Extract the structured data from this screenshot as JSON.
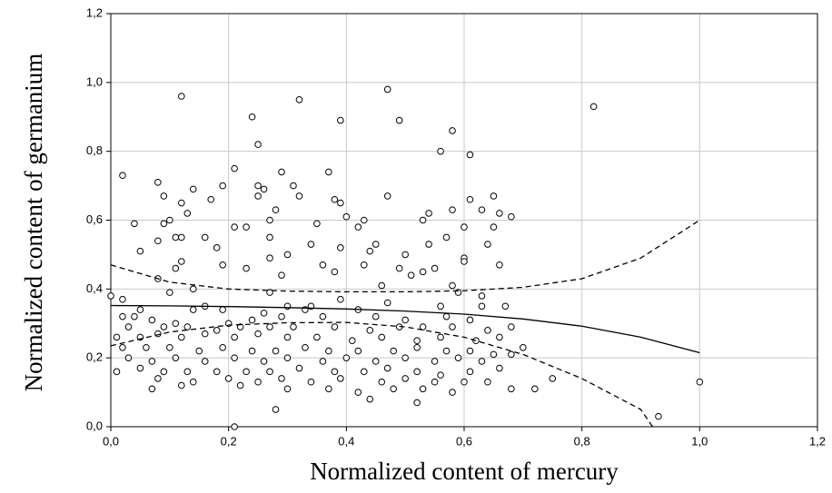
{
  "chart_data": {
    "type": "scatter",
    "x_label": "Normalized content of mercury",
    "y_label": "Normalized content of germanium",
    "xlim": [
      0,
      1.2
    ],
    "ylim": [
      0,
      1.2
    ],
    "xticks": [
      {
        "value": 0,
        "label": "0,0"
      },
      {
        "value": 0.2,
        "label": "0,2"
      },
      {
        "value": 0.4,
        "label": "0,4"
      },
      {
        "value": 0.6,
        "label": "0,6"
      },
      {
        "value": 0.8,
        "label": "0,8"
      },
      {
        "value": 1.0,
        "label": "1,0"
      },
      {
        "value": 1.2,
        "label": "1,2"
      }
    ],
    "yticks": [
      {
        "value": 0,
        "label": "0,0"
      },
      {
        "value": 0.2,
        "label": "0,2"
      },
      {
        "value": 0.4,
        "label": "0,4"
      },
      {
        "value": 0.6,
        "label": "0,6"
      },
      {
        "value": 0.8,
        "label": "0,8"
      },
      {
        "value": 1.0,
        "label": "1,0"
      },
      {
        "value": 1.2,
        "label": "1,2"
      }
    ],
    "grid": true,
    "series": [
      {
        "type": "scatter",
        "color": "#000000",
        "x": [
          0.12,
          0.32,
          0.47,
          0.82,
          0.24,
          0.49,
          0.39,
          0.58,
          0.25,
          0.56,
          0.61,
          0.37,
          0.21,
          0.29,
          0.02,
          0.08,
          0.19,
          0.31,
          0.25,
          0.26,
          0.14,
          0.32,
          0.38,
          0.25,
          0.47,
          0.65,
          0.09,
          0.17,
          0.39,
          0.12,
          0.61,
          0.63,
          0.13,
          0.28,
          0.58,
          0.66,
          0.4,
          0.54,
          0.43,
          0.53,
          0.04,
          0.1,
          0.09,
          0.21,
          0.23,
          0.27,
          0.35,
          0.42,
          0.6,
          0.68,
          0.65,
          0.11,
          0.12,
          0.16,
          0.27,
          0.08,
          0.64,
          0.39,
          0.54,
          0.45,
          0.57,
          0.34,
          0.05,
          0.18,
          0.3,
          0.44,
          0.5,
          0.6,
          0.27,
          0.19,
          0.49,
          0.53,
          0.43,
          0.6,
          0.66,
          0.11,
          0.23,
          0.36,
          0.51,
          0.12,
          0.38,
          0.55,
          0.08,
          0.29,
          0.46,
          0.14,
          0.58,
          0.0,
          0.02,
          0.1,
          0.27,
          0.39,
          0.59,
          0.63,
          0.3,
          0.33,
          0.47,
          0.16,
          0.34,
          0.56,
          0.05,
          0.14,
          0.19,
          0.26,
          0.42,
          0.63,
          0.67,
          0.02,
          0.04,
          0.07,
          0.11,
          0.2,
          0.24,
          0.29,
          0.36,
          0.45,
          0.5,
          0.57,
          0.61,
          0.03,
          0.09,
          0.13,
          0.18,
          0.22,
          0.27,
          0.31,
          0.38,
          0.44,
          0.49,
          0.53,
          0.58,
          0.64,
          0.68,
          0.01,
          0.05,
          0.08,
          0.12,
          0.16,
          0.21,
          0.25,
          0.3,
          0.35,
          0.41,
          0.46,
          0.52,
          0.56,
          0.62,
          0.66,
          0.02,
          0.06,
          0.1,
          0.15,
          0.19,
          0.24,
          0.28,
          0.33,
          0.37,
          0.42,
          0.48,
          0.52,
          0.57,
          0.61,
          0.65,
          0.7,
          0.03,
          0.07,
          0.11,
          0.16,
          0.21,
          0.26,
          0.3,
          0.36,
          0.4,
          0.45,
          0.5,
          0.55,
          0.59,
          0.63,
          0.68,
          0.01,
          0.05,
          0.09,
          0.13,
          0.18,
          0.23,
          0.27,
          0.32,
          0.38,
          0.43,
          0.47,
          0.52,
          0.56,
          0.61,
          0.66,
          0.75,
          0.08,
          0.14,
          0.2,
          0.25,
          0.29,
          0.34,
          0.39,
          0.46,
          0.5,
          0.55,
          0.6,
          0.64,
          0.68,
          0.72,
          1.0,
          0.07,
          0.12,
          0.22,
          0.3,
          0.37,
          0.42,
          0.48,
          0.53,
          0.58,
          0.44,
          0.52,
          0.28,
          0.93,
          0.21
        ],
        "y": [
          0.96,
          0.95,
          0.98,
          0.93,
          0.9,
          0.89,
          0.89,
          0.86,
          0.82,
          0.8,
          0.79,
          0.74,
          0.75,
          0.74,
          0.73,
          0.71,
          0.7,
          0.7,
          0.7,
          0.69,
          0.69,
          0.67,
          0.66,
          0.67,
          0.67,
          0.67,
          0.67,
          0.66,
          0.65,
          0.65,
          0.66,
          0.63,
          0.62,
          0.63,
          0.63,
          0.62,
          0.61,
          0.62,
          0.6,
          0.6,
          0.59,
          0.6,
          0.59,
          0.58,
          0.58,
          0.6,
          0.59,
          0.58,
          0.58,
          0.61,
          0.58,
          0.55,
          0.55,
          0.55,
          0.55,
          0.54,
          0.53,
          0.52,
          0.53,
          0.53,
          0.55,
          0.53,
          0.51,
          0.52,
          0.5,
          0.51,
          0.5,
          0.49,
          0.49,
          0.47,
          0.46,
          0.45,
          0.47,
          0.48,
          0.47,
          0.46,
          0.46,
          0.47,
          0.44,
          0.48,
          0.45,
          0.46,
          0.43,
          0.44,
          0.41,
          0.4,
          0.41,
          0.38,
          0.37,
          0.39,
          0.39,
          0.37,
          0.39,
          0.38,
          0.35,
          0.34,
          0.36,
          0.35,
          0.35,
          0.35,
          0.34,
          0.34,
          0.34,
          0.33,
          0.34,
          0.35,
          0.35,
          0.32,
          0.32,
          0.31,
          0.3,
          0.3,
          0.31,
          0.32,
          0.32,
          0.32,
          0.31,
          0.32,
          0.31,
          0.29,
          0.29,
          0.29,
          0.28,
          0.29,
          0.29,
          0.29,
          0.29,
          0.28,
          0.29,
          0.29,
          0.29,
          0.28,
          0.29,
          0.26,
          0.26,
          0.27,
          0.26,
          0.27,
          0.26,
          0.27,
          0.26,
          0.26,
          0.25,
          0.26,
          0.25,
          0.26,
          0.25,
          0.26,
          0.23,
          0.23,
          0.23,
          0.22,
          0.23,
          0.22,
          0.22,
          0.23,
          0.22,
          0.22,
          0.22,
          0.23,
          0.22,
          0.22,
          0.21,
          0.23,
          0.2,
          0.19,
          0.2,
          0.19,
          0.2,
          0.19,
          0.2,
          0.19,
          0.2,
          0.19,
          0.2,
          0.19,
          0.2,
          0.19,
          0.21,
          0.16,
          0.17,
          0.16,
          0.16,
          0.16,
          0.16,
          0.16,
          0.17,
          0.16,
          0.16,
          0.17,
          0.16,
          0.15,
          0.16,
          0.17,
          0.14,
          0.14,
          0.13,
          0.14,
          0.13,
          0.14,
          0.13,
          0.14,
          0.13,
          0.14,
          0.13,
          0.13,
          0.13,
          0.11,
          0.11,
          0.13,
          0.11,
          0.12,
          0.12,
          0.11,
          0.11,
          0.1,
          0.11,
          0.11,
          0.1,
          0.08,
          0.07,
          0.05,
          0.03,
          0.0
        ]
      },
      {
        "type": "line",
        "line_style": "solid",
        "color": "#000000",
        "x": [
          0,
          0.1,
          0.2,
          0.3,
          0.4,
          0.5,
          0.6,
          0.7,
          0.8,
          0.9,
          1.0
        ],
        "y": [
          0.352,
          0.351,
          0.349,
          0.346,
          0.342,
          0.336,
          0.327,
          0.313,
          0.292,
          0.26,
          0.215
        ]
      },
      {
        "type": "line",
        "line_style": "dashed",
        "color": "#000000",
        "x": [
          0,
          0.1,
          0.2,
          0.3,
          0.4,
          0.5,
          0.6,
          0.7,
          0.8,
          0.9,
          1.0
        ],
        "y": [
          0.47,
          0.42,
          0.4,
          0.394,
          0.392,
          0.392,
          0.395,
          0.405,
          0.43,
          0.49,
          0.6
        ]
      },
      {
        "type": "line",
        "line_style": "dashed",
        "color": "#000000",
        "x": [
          0,
          0.1,
          0.2,
          0.3,
          0.4,
          0.5,
          0.6,
          0.7,
          0.8,
          0.9,
          0.92
        ],
        "y": [
          0.235,
          0.275,
          0.295,
          0.302,
          0.303,
          0.29,
          0.26,
          0.21,
          0.14,
          0.05,
          0.0
        ]
      }
    ]
  }
}
